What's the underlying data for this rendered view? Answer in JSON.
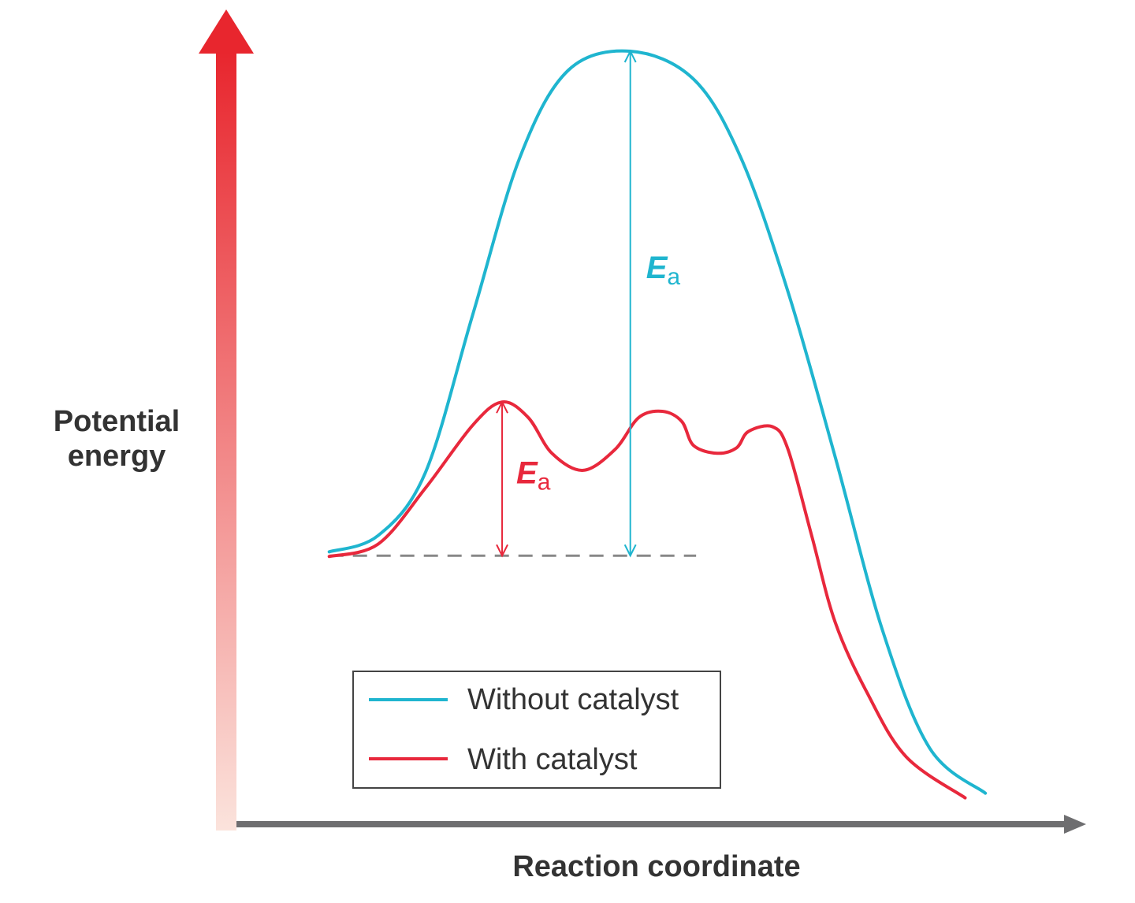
{
  "chart_data": {
    "type": "line",
    "title": "",
    "xlabel": "Reaction coordinate",
    "ylabel_line1": "Potential",
    "ylabel_line2": "energy",
    "xlim": [
      0,
      100
    ],
    "ylim": [
      0,
      100
    ],
    "grid": false,
    "ticks": false,
    "legend_placement": "bottom-center",
    "reactant_level": 35,
    "series": [
      {
        "name": "Without catalyst",
        "color": "#1fb5cf",
        "x": [
          11.0,
          16.8,
          22.4,
          28.0,
          33.6,
          39.3,
          46.7,
          54.2,
          59.8,
          65.4,
          71.0,
          76.6,
          82.2,
          88.8
        ],
        "y": [
          35.5,
          37.6,
          45.7,
          66.0,
          86.3,
          97.5,
          100,
          96.4,
          86.3,
          69.0,
          47.7,
          25.4,
          10.2,
          4.4
        ]
      },
      {
        "name": "With catalyst",
        "color": "#e8283c",
        "x": [
          11.0,
          16.8,
          22.4,
          28.0,
          31.5,
          34.6,
          37.4,
          41.1,
          44.9,
          47.7,
          50.5,
          52.8,
          54.2,
          57.0,
          59.3,
          60.7,
          63.6,
          65.4,
          68.2,
          71.0,
          74.8,
          79.4,
          86.4
        ],
        "y": [
          34.9,
          36.5,
          43.7,
          51.8,
          54.8,
          52.8,
          48.2,
          46.0,
          48.7,
          52.8,
          53.6,
          52.3,
          49.2,
          48.2,
          48.9,
          51.0,
          51.6,
          48.7,
          37.6,
          26.4,
          17.3,
          9.1,
          3.8
        ]
      }
    ],
    "baseline": {
      "x": [
        11.0,
        54.5
      ],
      "y": 35,
      "style": "dashed",
      "color": "#888888"
    },
    "annotations": [
      {
        "label_main": "E",
        "label_sub": "a",
        "series": "Without catalyst",
        "x": 46.7,
        "from": 35,
        "to": 100,
        "color": "#1fb5cf"
      },
      {
        "label_main": "E",
        "label_sub": "a",
        "series": "With catalyst",
        "x": 31.5,
        "from": 35,
        "to": 54.8,
        "color": "#e8283c"
      }
    ],
    "axis_colors": {
      "y_top": "#e8262e",
      "y_bottom": "#fbe3dc",
      "x": "#6e6e70"
    }
  }
}
